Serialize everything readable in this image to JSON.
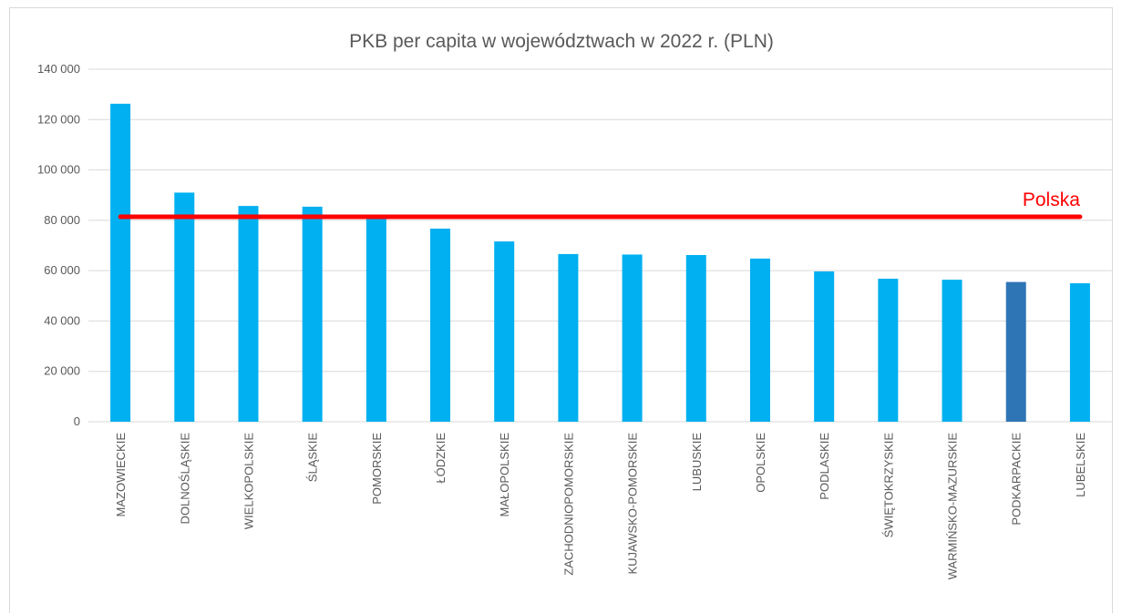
{
  "chart_data": {
    "type": "bar",
    "title": "PKB per capita w województwach w 2022 r. (PLN)",
    "categories": [
      "MAZOWIECKIE",
      "DOLNOŚLĄSKIE",
      "WIELKOPOLSKIE",
      "ŚLĄSKIE",
      "POMORSKIE",
      "ŁÓDZKIE",
      "MAŁOPOLSKIE",
      "ZACHODNIOPOMORSKIE",
      "KUJAWSKO-POMORSKIE",
      "LUBUSKIE",
      "OPOLSKIE",
      "PODLASKIE",
      "ŚWIĘTOKRZYSKIE",
      "WARMIŃSKO-MAZURSKIE",
      "PODKARPACKIE",
      "LUBELSKIE"
    ],
    "values": [
      126300,
      91000,
      85700,
      85400,
      81800,
      76700,
      71600,
      66600,
      66400,
      66200,
      64800,
      59700,
      56800,
      56400,
      55500,
      55000
    ],
    "colors": [
      "#00b0f0",
      "#00b0f0",
      "#00b0f0",
      "#00b0f0",
      "#00b0f0",
      "#00b0f0",
      "#00b0f0",
      "#00b0f0",
      "#00b0f0",
      "#00b0f0",
      "#00b0f0",
      "#00b0f0",
      "#00b0f0",
      "#00b0f0",
      "#2e75b6",
      "#00b0f0"
    ],
    "reference": {
      "name": "Polska",
      "value": 81400,
      "color": "#ff0000"
    },
    "ylim": [
      0,
      140000
    ],
    "yticks": [
      {
        "value": 0,
        "label": "0"
      },
      {
        "value": 20000,
        "label": "20 000"
      },
      {
        "value": 40000,
        "label": "40 000"
      },
      {
        "value": 60000,
        "label": "60 000"
      },
      {
        "value": 80000,
        "label": "80 000"
      },
      {
        "value": 100000,
        "label": "100 000"
      },
      {
        "value": 120000,
        "label": "120 000"
      },
      {
        "value": 140000,
        "label": "140 000"
      }
    ],
    "grid": true
  }
}
